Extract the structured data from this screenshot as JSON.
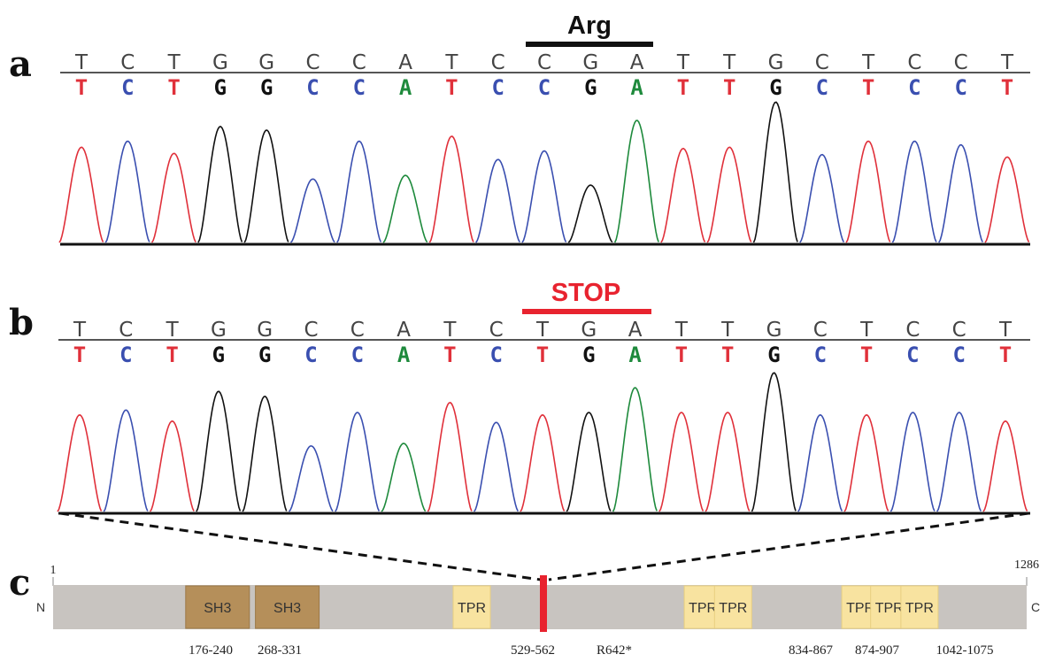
{
  "colors": {
    "T": "#e0303a",
    "C": "#3a4fb0",
    "G": "#111111",
    "A": "#1e8a3c",
    "stop_accent": "#e8232f",
    "protein_bar": "#c8c4c0",
    "sh3_fill": "#b58f5a",
    "tpr_fill": "#f8e3a0"
  },
  "chromatograms": [
    {
      "letter": "a",
      "codon_label": "Arg",
      "codon_color": "#111111",
      "reference": [
        "T",
        "C",
        "T",
        "G",
        "G",
        "C",
        "C",
        "A",
        "T",
        "C",
        "C",
        "G",
        "A",
        "T",
        "T",
        "G",
        "C",
        "T",
        "C",
        "C",
        "T"
      ],
      "calls": [
        "T",
        "C",
        "T",
        "G",
        "G",
        "C",
        "C",
        "A",
        "T",
        "C",
        "C",
        "G",
        "A",
        "T",
        "T",
        "G",
        "C",
        "T",
        "C",
        "C",
        "T"
      ],
      "peak_heights": [
        0.78,
        0.83,
        0.73,
        0.95,
        0.92,
        0.52,
        0.83,
        0.55,
        0.87,
        0.68,
        0.75,
        0.47,
        1.0,
        0.77,
        0.78,
        1.15,
        0.72,
        0.83,
        0.83,
        0.8,
        0.7
      ]
    },
    {
      "letter": "b",
      "codon_label": "STOP",
      "codon_color": "#e8232f",
      "reference": [
        "T",
        "C",
        "T",
        "G",
        "G",
        "C",
        "C",
        "A",
        "T",
        "C",
        "T",
        "G",
        "A",
        "T",
        "T",
        "G",
        "C",
        "T",
        "C",
        "C",
        "T"
      ],
      "calls": [
        "T",
        "C",
        "T",
        "G",
        "G",
        "C",
        "C",
        "A",
        "T",
        "C",
        "T",
        "G",
        "A",
        "T",
        "T",
        "G",
        "C",
        "T",
        "C",
        "C",
        "T"
      ],
      "peak_heights": [
        0.78,
        0.82,
        0.73,
        0.97,
        0.93,
        0.53,
        0.8,
        0.55,
        0.88,
        0.72,
        0.78,
        0.8,
        1.0,
        0.8,
        0.8,
        1.12,
        0.78,
        0.78,
        0.8,
        0.8,
        0.73
      ]
    }
  ],
  "protein": {
    "letter": "c",
    "length": 1286,
    "start_label": "1",
    "end_label": "1286",
    "n_label": "N",
    "c_label": "C",
    "mutation": {
      "position": 642,
      "label": "R642*"
    },
    "domains": [
      {
        "name": "SH3",
        "type": "SH3",
        "start": 176,
        "end": 240
      },
      {
        "name": "SH3",
        "type": "SH3",
        "start": 268,
        "end": 331
      },
      {
        "name": "TPR",
        "type": "TPR",
        "start": 529,
        "end": 562
      },
      {
        "name": "TPR",
        "type": "TPR",
        "start": 834,
        "end": 867
      },
      {
        "name": "TPR",
        "type": "TPR",
        "start": 874,
        "end": 907
      },
      {
        "name": "TPR",
        "type": "TPR",
        "start": 1042,
        "end": 1075
      },
      {
        "name": "TPR",
        "type": "TPR",
        "start": 1080,
        "end": 1113
      },
      {
        "name": "TPR",
        "type": "TPR",
        "start": 1120,
        "end": 1153
      }
    ],
    "range_labels": [
      "176-240",
      "268-331",
      "529-562",
      "834-867",
      "874-907",
      "1042-1075"
    ]
  }
}
